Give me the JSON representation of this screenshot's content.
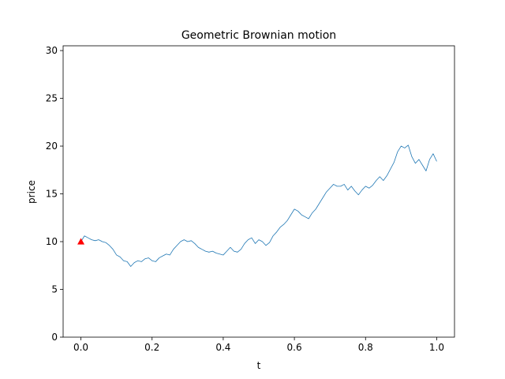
{
  "chart_data": {
    "type": "line",
    "title": "Geometric Brownian motion",
    "xlabel": "t",
    "ylabel": "price",
    "xlim": [
      -0.05,
      1.05
    ],
    "ylim": [
      0,
      30.5
    ],
    "xticks": [
      0.0,
      0.2,
      0.4,
      0.6,
      0.8,
      1.0
    ],
    "xtick_labels": [
      "0.0",
      "0.2",
      "0.4",
      "0.6",
      "0.8",
      "1.0"
    ],
    "yticks": [
      0,
      5,
      10,
      15,
      20,
      25,
      30
    ],
    "ytick_labels": [
      "0",
      "5",
      "10",
      "15",
      "20",
      "25",
      "30"
    ],
    "grid": false,
    "series": [
      {
        "color": "#1f77b4",
        "x": [
          0.0,
          0.01,
          0.02,
          0.03,
          0.04,
          0.05,
          0.06,
          0.07,
          0.08,
          0.09,
          0.1,
          0.11,
          0.12,
          0.13,
          0.14,
          0.15,
          0.16,
          0.17,
          0.18,
          0.19,
          0.2,
          0.21,
          0.22,
          0.23,
          0.24,
          0.25,
          0.26,
          0.27,
          0.28,
          0.29,
          0.3,
          0.31,
          0.32,
          0.33,
          0.34,
          0.35,
          0.36,
          0.37,
          0.38,
          0.39,
          0.4,
          0.41,
          0.42,
          0.43,
          0.44,
          0.45,
          0.46,
          0.47,
          0.48,
          0.49,
          0.5,
          0.51,
          0.52,
          0.53,
          0.54,
          0.55,
          0.56,
          0.57,
          0.58,
          0.59,
          0.6,
          0.61,
          0.62,
          0.63,
          0.64,
          0.65,
          0.66,
          0.67,
          0.68,
          0.69,
          0.7,
          0.71,
          0.72,
          0.73,
          0.74,
          0.75,
          0.76,
          0.77,
          0.78,
          0.79,
          0.8,
          0.81,
          0.82,
          0.83,
          0.84,
          0.85,
          0.86,
          0.87,
          0.88,
          0.89,
          0.9,
          0.91,
          0.92,
          0.93,
          0.94,
          0.95,
          0.96,
          0.97,
          0.98,
          0.99,
          1.0
        ],
        "y": [
          10.0,
          10.6,
          10.4,
          10.2,
          10.1,
          10.2,
          10.0,
          9.9,
          9.6,
          9.2,
          8.6,
          8.4,
          8.0,
          7.9,
          7.4,
          7.8,
          8.0,
          7.9,
          8.2,
          8.3,
          8.0,
          7.9,
          8.3,
          8.5,
          8.7,
          8.6,
          9.2,
          9.6,
          10.0,
          10.2,
          10.0,
          10.1,
          9.8,
          9.4,
          9.2,
          9.0,
          8.9,
          9.0,
          8.8,
          8.7,
          8.6,
          9.0,
          9.4,
          9.0,
          8.9,
          9.2,
          9.8,
          10.2,
          10.4,
          9.8,
          10.2,
          10.0,
          9.6,
          9.9,
          10.6,
          11.0,
          11.5,
          11.8,
          12.2,
          12.8,
          13.4,
          13.2,
          12.8,
          12.6,
          12.4,
          13.0,
          13.4,
          14.0,
          14.6,
          15.2,
          15.6,
          16.0,
          15.8,
          15.8,
          16.0,
          15.4,
          15.8,
          15.3,
          14.9,
          15.4,
          15.8,
          15.6,
          15.9,
          16.4,
          16.8,
          16.4,
          16.9,
          17.6,
          18.3,
          19.4,
          20.0,
          19.8,
          20.1,
          18.9,
          18.2,
          18.6,
          18.0,
          17.4,
          18.6,
          19.2,
          18.4
        ]
      }
    ],
    "markers": [
      {
        "type": "triangle-up",
        "color": "#ff0000",
        "x": 0.0,
        "y": 10.0
      }
    ]
  }
}
